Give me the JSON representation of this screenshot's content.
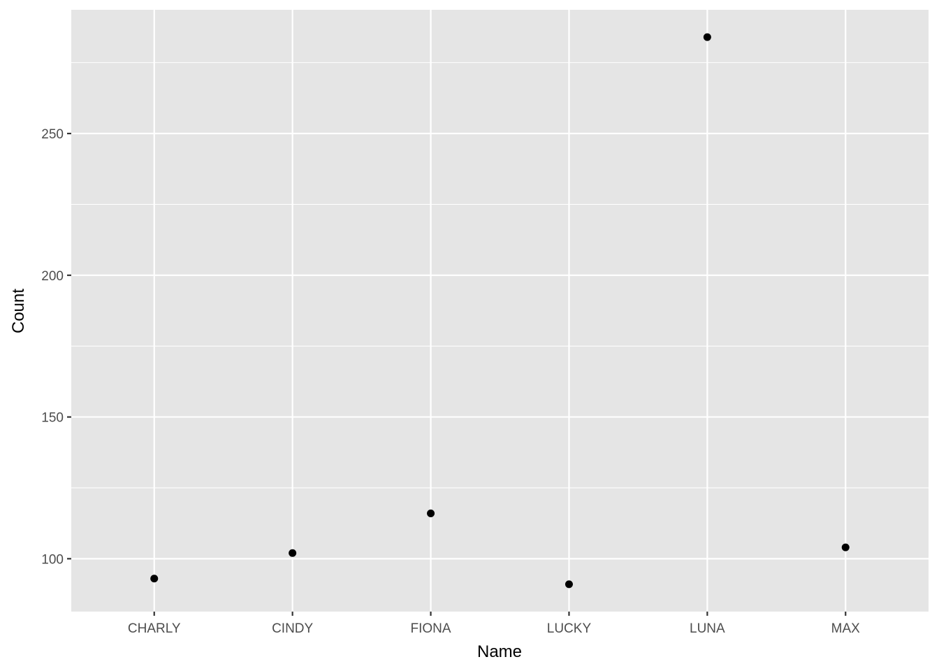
{
  "chart_data": {
    "type": "scatter",
    "title": "",
    "xlabel": "Name",
    "ylabel": "Count",
    "categories": [
      "CHARLY",
      "CINDY",
      "FIONA",
      "LUCKY",
      "LUNA",
      "MAX"
    ],
    "values": [
      93,
      102,
      116,
      91,
      284,
      104
    ],
    "ylim": [
      81.35,
      293.65
    ],
    "yticks": [
      100,
      150,
      200,
      250
    ],
    "yminor": [
      125,
      175,
      225,
      275
    ],
    "grid": true,
    "legend": "none",
    "colors": {
      "panel": "#e5e5e5",
      "grid": "#ffffff",
      "point": "#000000"
    }
  }
}
